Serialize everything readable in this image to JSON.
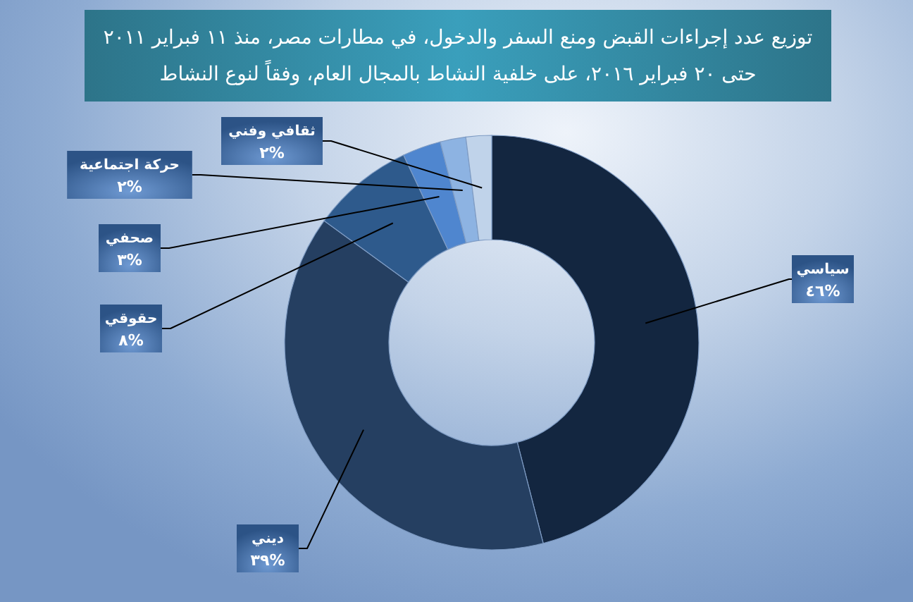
{
  "chart_data": {
    "type": "donut",
    "title": "توزيع عدد إجراءات القبض ومنع السفر والدخول، في مطارات مصر، منذ ١١ فبراير ٢٠١١ حتى ٢٠ فبراير ٢٠١٦، على خلفية النشاط بالمجال العام، وفقاً لنوع النشاط",
    "categories": [
      "سياسي",
      "ديني",
      "حقوقي",
      "صحفي",
      "حركة اجتماعية",
      "ثقافي وفني"
    ],
    "values": [
      46,
      39,
      8,
      3,
      2,
      2
    ],
    "value_labels": [
      "٤٦%",
      "٣٩%",
      "٨%",
      "٣%",
      "٢%",
      "٢%"
    ],
    "colors": [
      "#132640",
      "#253f61",
      "#2e5a8c",
      "#4f86cf",
      "#8db3e2",
      "#c0d3ea"
    ]
  }
}
